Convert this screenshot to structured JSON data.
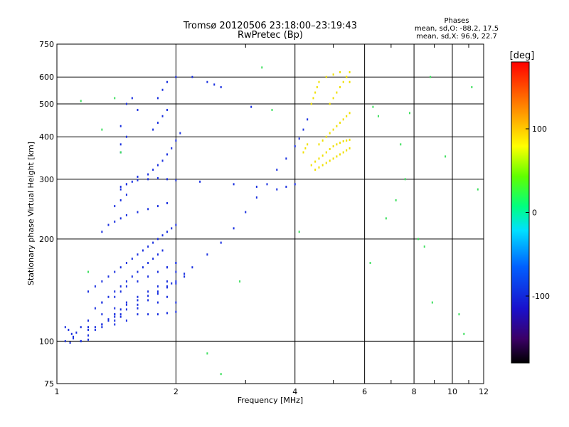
{
  "chart_data": {
    "type": "scatter",
    "title": "Tromsø 20120506 23:18:00–23:19:43",
    "subtitle": "RwPretec (Bp)",
    "xlabel": "Frequency [MHz]",
    "ylabel": "Stationary phase Virtual Height [km]",
    "x_scale": "log",
    "y_scale": "log",
    "xlim": [
      1,
      12
    ],
    "ylim": [
      75,
      750
    ],
    "x_ticks": [
      1,
      2,
      4,
      6,
      8,
      10,
      12
    ],
    "y_ticks": [
      75,
      100,
      200,
      300,
      400,
      500,
      600,
      750
    ],
    "grid": true,
    "phases_box": {
      "title": "Phases",
      "line1": "mean, sd,O: -88.2, 17.5",
      "line2": "mean, sd,X:  96.9, 22.7"
    },
    "colorbar": {
      "label": "[deg]",
      "range": [
        -180,
        180
      ],
      "ticks": [
        100,
        0,
        -100
      ]
    },
    "series": [
      {
        "mode": "O",
        "phase_deg": -100,
        "x": [
          1.05,
          1.07,
          1.09,
          1.1,
          1.15,
          1.2,
          1.25,
          1.3,
          1.35,
          1.4,
          1.45,
          1.5,
          1.6,
          1.7,
          1.8,
          1.9,
          2.0,
          2.1,
          2.2,
          2.4,
          2.6,
          2.8,
          3.0,
          3.2,
          3.4,
          3.6,
          3.8,
          4.0,
          4.1,
          4.2,
          4.3,
          1.45,
          1.5,
          1.55,
          1.6,
          1.7,
          1.8,
          1.9,
          2.0,
          1.6,
          1.7,
          1.75,
          1.8,
          1.85,
          1.9,
          1.95,
          2.0,
          2.05,
          1.75,
          1.8,
          1.85,
          1.9,
          1.8,
          1.85,
          1.9,
          2.0,
          2.4,
          2.5,
          2.6,
          3.1,
          2.2,
          1.55,
          1.5,
          1.6,
          1.45,
          1.5,
          1.45,
          1.45,
          1.3,
          1.35,
          1.4,
          1.45,
          1.5,
          1.55,
          1.6,
          1.65,
          1.7,
          1.75,
          1.8,
          1.85,
          1.2,
          1.25,
          1.3,
          1.35,
          1.4,
          1.45,
          1.5,
          1.55,
          1.6,
          1.65,
          1.7,
          1.75,
          1.8,
          1.85,
          1.9,
          1.95,
          2.0,
          1.25,
          1.3,
          1.4,
          1.45,
          1.5,
          1.6,
          1.7,
          1.8,
          1.9,
          2.0,
          1.15,
          1.2,
          1.3,
          1.4,
          1.5,
          1.6,
          1.7,
          1.8,
          1.9,
          1.2,
          1.3,
          1.4,
          1.45,
          1.6,
          1.7,
          1.8,
          1.9,
          2.0,
          1.3,
          1.35,
          1.4,
          1.45,
          1.5,
          1.6,
          1.7,
          1.8,
          1.9,
          1.15,
          1.2,
          1.25,
          1.3,
          1.35,
          1.4,
          1.45,
          1.5,
          1.6,
          1.7,
          1.8,
          1.9,
          2.0,
          1.4,
          1.45,
          1.5,
          1.45,
          1.5,
          1.05,
          1.08,
          1.1,
          1.12,
          1.2,
          1.3,
          1.4,
          1.5,
          1.4,
          1.6,
          1.8,
          1.9,
          2.3,
          2.8,
          3.2,
          3.6,
          3.8,
          4.0,
          2.0,
          1.9,
          2.0,
          2.1,
          1.95,
          2.0
        ],
        "y": [
          110,
          108,
          105,
          102,
          100,
          101,
          110,
          112,
          115,
          118,
          120,
          124,
          128,
          132,
          138,
          145,
          150,
          158,
          165,
          180,
          195,
          215,
          240,
          265,
          290,
          320,
          345,
          375,
          395,
          420,
          450,
          285,
          290,
          295,
          298,
          300,
          302,
          300,
          298,
          305,
          310,
          320,
          330,
          340,
          355,
          370,
          390,
          410,
          420,
          440,
          460,
          480,
          520,
          550,
          580,
          600,
          580,
          570,
          560,
          490,
          600,
          520,
          500,
          480,
          430,
          400,
          380,
          360,
          130,
          135,
          140,
          145,
          150,
          155,
          160,
          165,
          170,
          175,
          180,
          185,
          140,
          145,
          150,
          155,
          160,
          165,
          170,
          175,
          180,
          185,
          190,
          195,
          200,
          205,
          210,
          215,
          220,
          125,
          130,
          135,
          140,
          145,
          150,
          155,
          160,
          165,
          170,
          110,
          115,
          120,
          125,
          130,
          135,
          140,
          145,
          150,
          110,
          112,
          115,
          118,
          120,
          120,
          120,
          121,
          122,
          210,
          220,
          225,
          230,
          235,
          240,
          245,
          250,
          255,
          100,
          104,
          108,
          112,
          116,
          120,
          124,
          128,
          132,
          136,
          140,
          144,
          148,
          250,
          260,
          270,
          280,
          290,
          100,
          99,
          103,
          106,
          108,
          110,
          112,
          115,
          120,
          125,
          130,
          135,
          295,
          290,
          285,
          280,
          285,
          290,
          170,
          165,
          160,
          155,
          148,
          130
        ]
      },
      {
        "mode": "X",
        "phase_deg": 100,
        "x": [
          4.4,
          4.5,
          4.6,
          4.7,
          4.8,
          4.9,
          5.0,
          5.1,
          5.2,
          5.3,
          5.4,
          5.5,
          4.5,
          4.6,
          4.7,
          4.8,
          4.9,
          5.0,
          5.1,
          5.2,
          5.3,
          5.4,
          5.5,
          4.6,
          4.7,
          4.8,
          4.9,
          5.0,
          5.1,
          5.2,
          5.3,
          5.4,
          5.5,
          4.4,
          4.45,
          4.5,
          4.55,
          4.6,
          4.8,
          5.0,
          5.2,
          5.4,
          5.5,
          4.9,
          5.0,
          5.1,
          5.2,
          5.3,
          5.4,
          5.5,
          4.2,
          4.25,
          4.3
        ],
        "y": [
          330,
          338,
          345,
          352,
          360,
          368,
          375,
          380,
          384,
          388,
          390,
          392,
          320,
          325,
          330,
          335,
          340,
          345,
          350,
          355,
          360,
          365,
          370,
          380,
          390,
          400,
          410,
          420,
          430,
          440,
          450,
          460,
          470,
          500,
          520,
          540,
          560,
          580,
          600,
          610,
          620,
          600,
          580,
          500,
          520,
          540,
          560,
          580,
          600,
          620,
          360,
          370,
          380
        ]
      },
      {
        "mode": "noise",
        "phase_deg": 40,
        "x": [
          1.15,
          1.3,
          1.45,
          2.4,
          2.9,
          3.5,
          4.1,
          6.2,
          6.8,
          7.2,
          7.8,
          8.2,
          8.5,
          8.8,
          9.6,
          10.4,
          11.2,
          11.6,
          6.5,
          7.4,
          8.9,
          10.7,
          6.3,
          7.6,
          1.2,
          1.4,
          2.6,
          3.3
        ],
        "y": [
          510,
          420,
          360,
          92,
          150,
          480,
          210,
          170,
          230,
          260,
          470,
          200,
          190,
          600,
          350,
          120,
          560,
          280,
          460,
          380,
          130,
          105,
          490,
          300,
          160,
          520,
          80,
          640
        ]
      }
    ]
  }
}
